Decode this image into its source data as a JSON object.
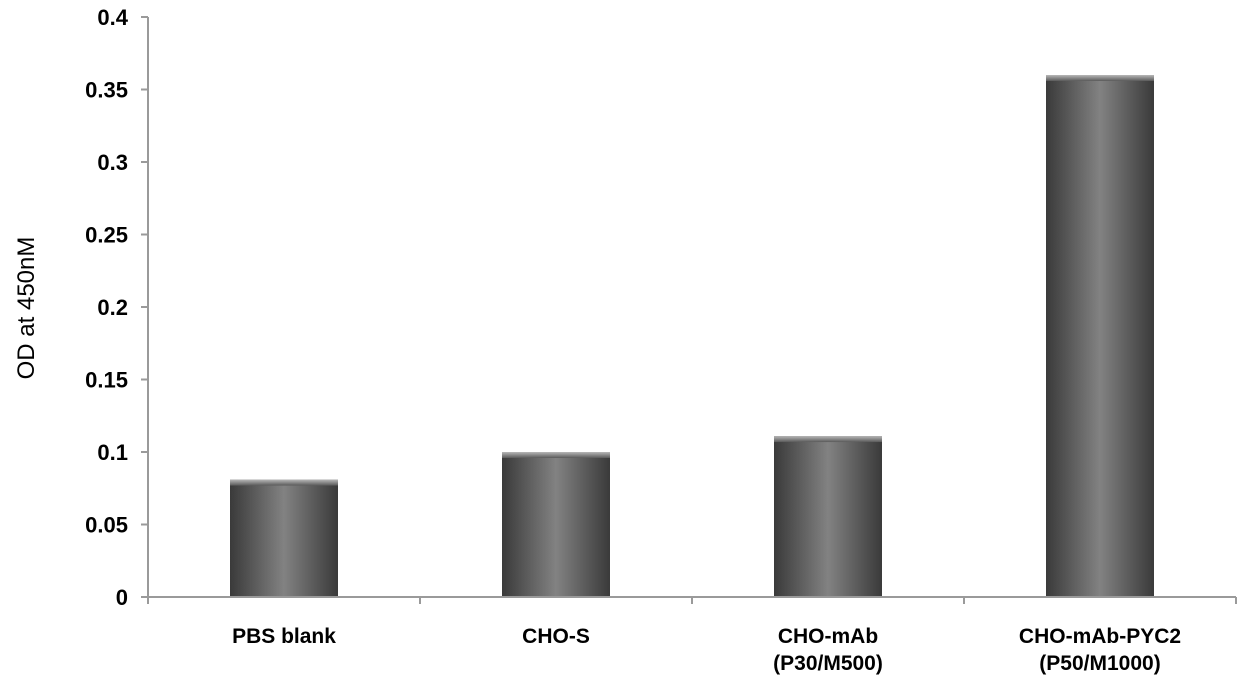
{
  "chart_data": {
    "type": "bar",
    "categories": [
      [
        "PBS blank"
      ],
      [
        "CHO-S"
      ],
      [
        "CHO-mAb",
        "(P30/M500)"
      ],
      [
        "CHO-mAb-PYC2",
        "(P50/M1000)"
      ]
    ],
    "values": [
      0.081,
      0.1,
      0.111,
      0.36
    ],
    "title": "",
    "xlabel": "",
    "ylabel": "OD at 450nM",
    "ylim": [
      0,
      0.4
    ],
    "yticks": [
      "0",
      "0.05",
      "0.1",
      "0.15",
      "0.2",
      "0.25",
      "0.3",
      "0.35",
      "0.4"
    ],
    "grid": false,
    "legend": "none",
    "colors": {
      "bar_dark": "#3f3f3f",
      "bar_light": "#8a8a8a",
      "axis": "#9a9a9a"
    }
  }
}
